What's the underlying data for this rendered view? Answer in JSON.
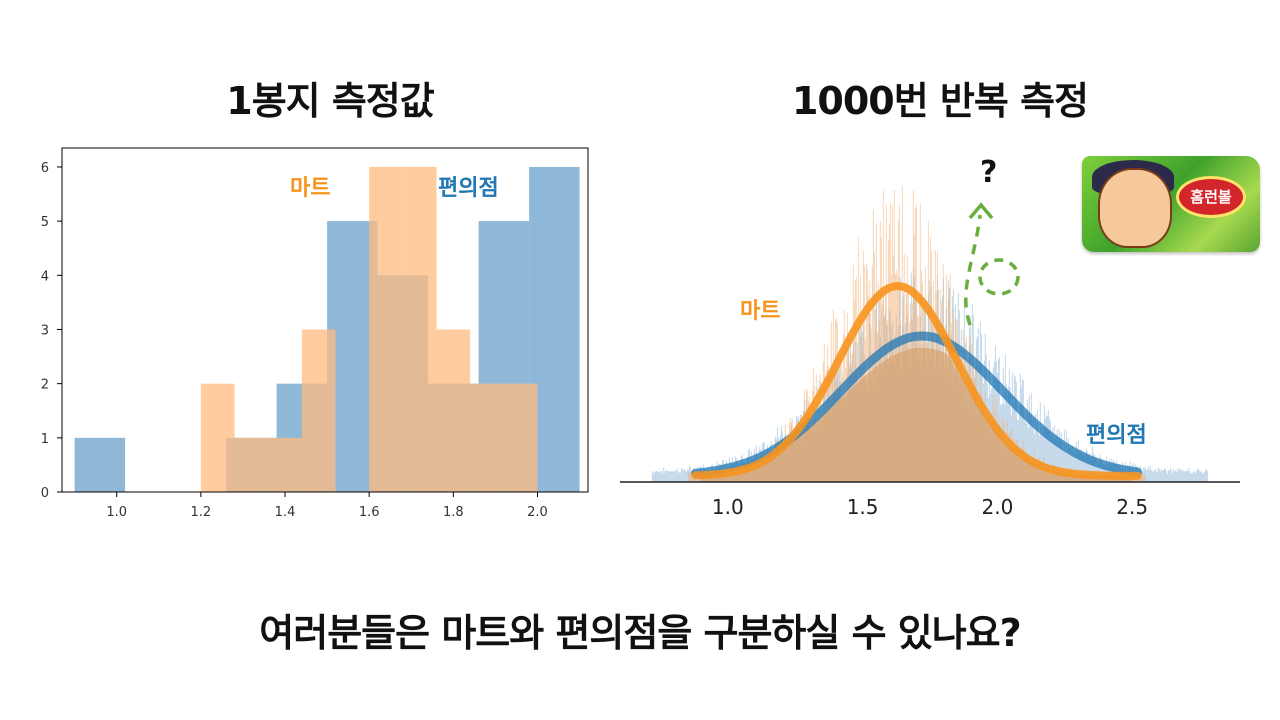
{
  "titles": {
    "left": "1봉지 측정값",
    "right": "1000번 반복 측정"
  },
  "question": "여러분들은 마트와 편의점을 구분하실 수  있나요?",
  "annotation_mark": "?",
  "snack": {
    "brand_text": "홈런볼",
    "icon": "snack-package-image"
  },
  "colors": {
    "mart": "#f7941d",
    "store": "#1f77b4",
    "mart_fill": "#ffbb80",
    "store_fill": "#8fb8d8",
    "arrow": "#6aaf3d"
  },
  "chart_data": [
    {
      "type": "histogram",
      "title": "1봉지 측정값",
      "xlim": [
        0.87,
        2.12
      ],
      "ylim": [
        0,
        6.35
      ],
      "xticks": [
        1.0,
        1.2,
        1.4,
        1.6,
        1.8,
        2.0
      ],
      "xtick_labels": [
        "1.0",
        "1.2",
        "1.4",
        "1.6",
        "1.8",
        "2.0"
      ],
      "yticks": [
        0,
        1,
        2,
        3,
        4,
        5,
        6
      ],
      "ytick_labels": [
        "0",
        "1",
        "2",
        "3",
        "4",
        "5",
        "6"
      ],
      "series": [
        {
          "name": "편의점",
          "color": "#1f77b4",
          "bin_edges": [
            0.9,
            1.02,
            1.14,
            1.26,
            1.38,
            1.5,
            1.62,
            1.74,
            1.86,
            1.98,
            2.1
          ],
          "counts": [
            1,
            0,
            0,
            1,
            2,
            5,
            4,
            2,
            5,
            6
          ]
        },
        {
          "name": "마트",
          "color": "#ff7f0e",
          "bin_edges": [
            1.2,
            1.28,
            1.36,
            1.44,
            1.52,
            1.6,
            1.68,
            1.76,
            1.84,
            1.92,
            2.0
          ],
          "counts": [
            2,
            1,
            1,
            3,
            0,
            6,
            6,
            3,
            2,
            2
          ]
        }
      ],
      "labels": {
        "mart": "마트",
        "store": "편의점"
      }
    },
    {
      "type": "area",
      "title": "1000번 반복 측정",
      "xlim": [
        0.6,
        2.9
      ],
      "xticks": [
        1.0,
        1.5,
        2.0,
        2.5
      ],
      "xtick_labels": [
        "1.0",
        "1.5",
        "2.0",
        "2.5"
      ],
      "series": [
        {
          "name": "마트",
          "color": "#f7941d",
          "mean": 1.63,
          "sd": 0.22,
          "range": [
            0.88,
            2.52
          ]
        },
        {
          "name": "편의점",
          "color": "#1f77b4",
          "mean": 1.72,
          "sd": 0.3,
          "range": [
            0.88,
            2.52
          ]
        }
      ],
      "labels": {
        "mart": "마트",
        "store": "편의점"
      }
    }
  ]
}
